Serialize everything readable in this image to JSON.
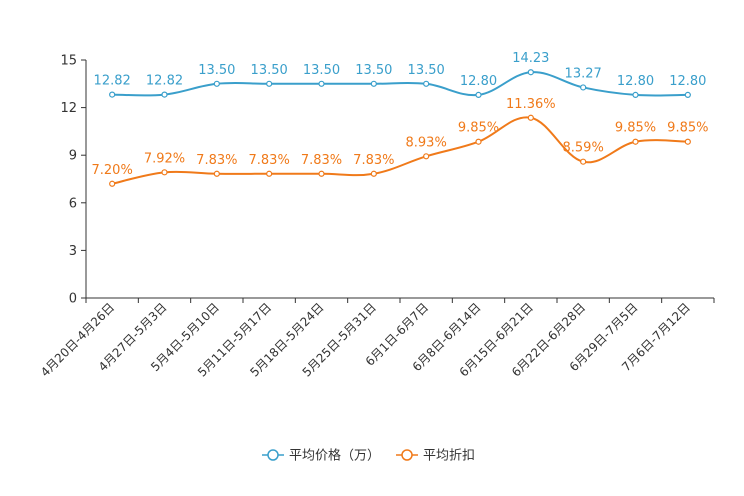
{
  "chart_data": {
    "type": "line",
    "title": "",
    "xlabel": "",
    "ylabel": "",
    "ylim": [
      0,
      15
    ],
    "yticks": [
      0,
      3,
      6,
      9,
      12,
      15
    ],
    "grid": false,
    "legend_position": "bottom-center",
    "categories": [
      "4月20日-4月26日",
      "4月27日-5月3日",
      "5月4日-5月10日",
      "5月11日-5月17日",
      "5月18日-5月24日",
      "5月25日-5月31日",
      "6月1日-6月7日",
      "6月8日-6月14日",
      "6月15日-6月21日",
      "6月22日-6月28日",
      "6月29日-7月5日",
      "7月6日-7月12日"
    ],
    "series": [
      {
        "name": "平均价格（万）",
        "color": "#3a9fcb",
        "values": [
          12.82,
          12.82,
          13.5,
          13.5,
          13.5,
          13.5,
          13.5,
          12.8,
          14.23,
          13.27,
          12.8,
          12.8
        ],
        "labels": [
          "12.82",
          "12.82",
          "13.50",
          "13.50",
          "13.50",
          "13.50",
          "13.50",
          "12.80",
          "14.23",
          "13.27",
          "12.80",
          "12.80"
        ]
      },
      {
        "name": "平均折扣",
        "color": "#f07a1a",
        "values": [
          7.2,
          7.92,
          7.83,
          7.83,
          7.83,
          7.83,
          8.93,
          9.85,
          11.36,
          8.59,
          9.85,
          9.85
        ],
        "labels": [
          "7.20%",
          "7.92%",
          "7.83%",
          "7.83%",
          "7.83%",
          "7.83%",
          "8.93%",
          "9.85%",
          "11.36%",
          "8.59%",
          "9.85%",
          "9.85%"
        ]
      }
    ]
  }
}
